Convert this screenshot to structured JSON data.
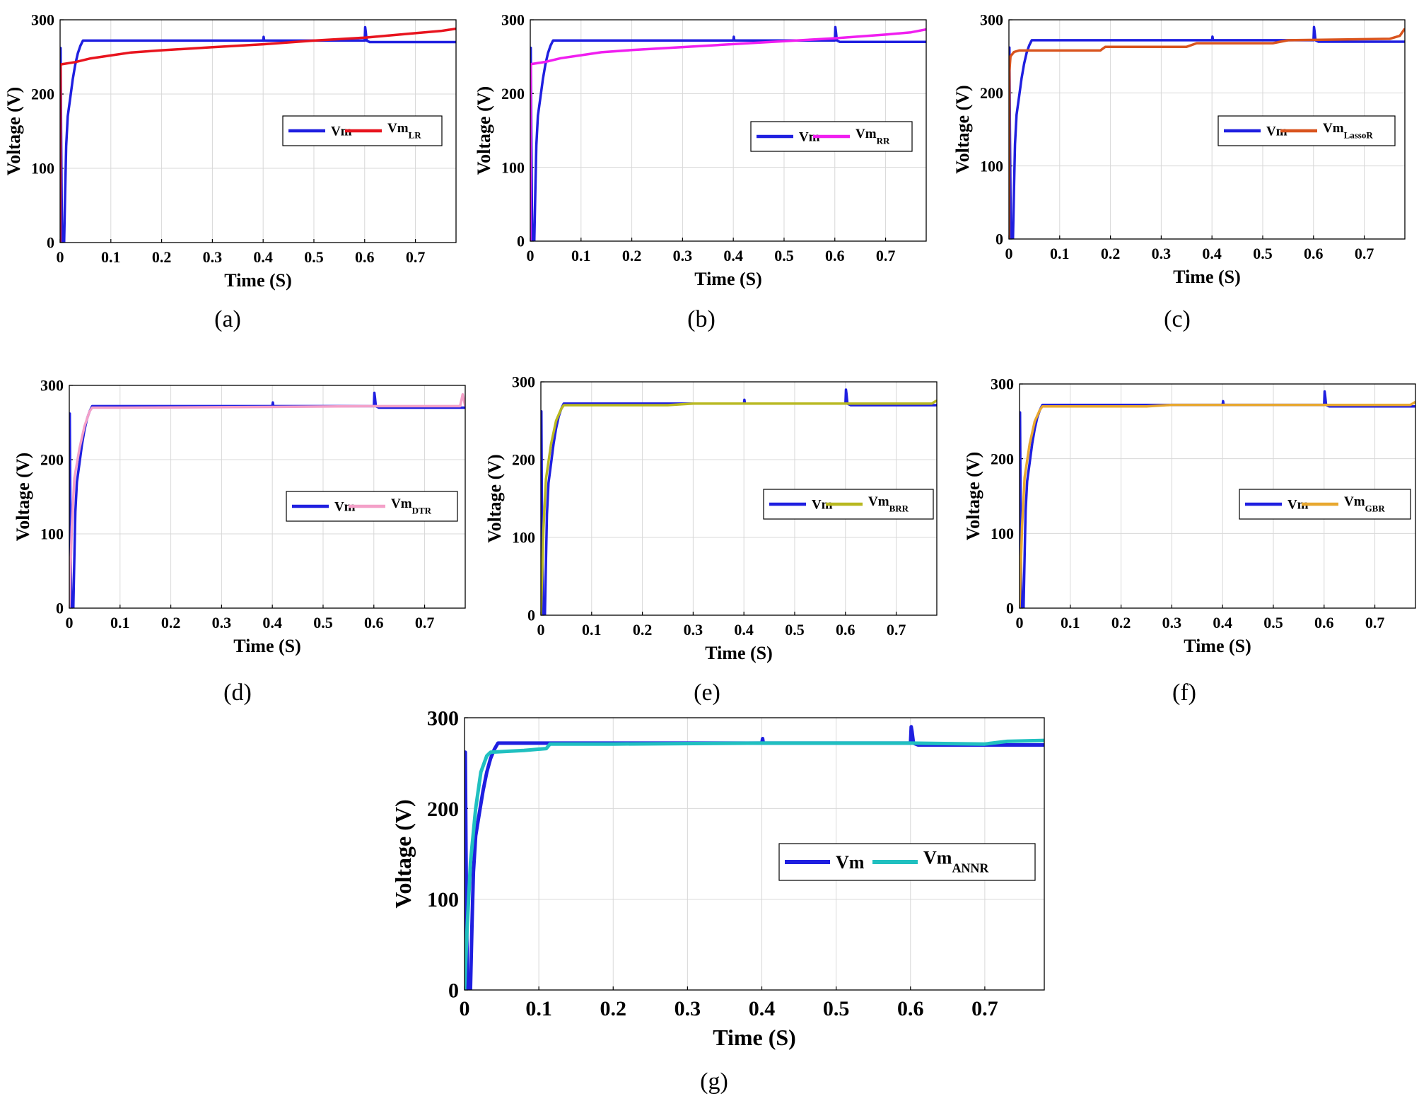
{
  "figure": {
    "panels": [
      {
        "id": "a",
        "caption": "(a)",
        "legend": [
          {
            "label": "Vm",
            "sub": "",
            "color": "#1f1fe0"
          },
          {
            "label": "Vm",
            "sub": "LR",
            "color": "#e8141e"
          }
        ]
      },
      {
        "id": "b",
        "caption": "(b)",
        "legend": [
          {
            "label": "Vm",
            "sub": "",
            "color": "#1f1fe0"
          },
          {
            "label": "Vm",
            "sub": "RR",
            "color": "#f01ef0"
          }
        ]
      },
      {
        "id": "c",
        "caption": "(c)",
        "legend": [
          {
            "label": "Vm",
            "sub": "",
            "color": "#1f1fe0"
          },
          {
            "label": "Vm",
            "sub": "LassoR",
            "color": "#d9541e"
          }
        ]
      },
      {
        "id": "d",
        "caption": "(d)",
        "legend": [
          {
            "label": "Vm",
            "sub": "",
            "color": "#1f1fe0"
          },
          {
            "label": "Vm",
            "sub": "DTR",
            "color": "#f4a0c8"
          }
        ]
      },
      {
        "id": "e",
        "caption": "(e)",
        "legend": [
          {
            "label": "Vm",
            "sub": "",
            "color": "#1f1fe0"
          },
          {
            "label": "Vm",
            "sub": "BRR",
            "color": "#b8b820"
          }
        ]
      },
      {
        "id": "f",
        "caption": "(f)",
        "legend": [
          {
            "label": "Vm",
            "sub": "",
            "color": "#1f1fe0"
          },
          {
            "label": "Vm",
            "sub": "GBR",
            "color": "#e8a830"
          }
        ]
      },
      {
        "id": "g",
        "caption": "(g)",
        "legend": [
          {
            "label": "Vm",
            "sub": "",
            "color": "#1f1fe0"
          },
          {
            "label": "Vm",
            "sub": "ANNR",
            "color": "#20c0c0"
          }
        ]
      }
    ]
  },
  "chart_data": [
    {
      "type": "line",
      "panel": "a",
      "title": "",
      "xlabel": "Time (S)",
      "ylabel": "Voltage (V)",
      "xlim": [
        0,
        0.78
      ],
      "ylim": [
        0,
        300
      ],
      "grid": true,
      "xticks": [
        "0",
        "0.1",
        "0.2",
        "0.3",
        "0.4",
        "0.5",
        "0.6",
        "0.7"
      ],
      "yticks": [
        "0",
        "100",
        "200",
        "300"
      ],
      "legend_position": "center-right",
      "series": [
        {
          "name": "Vm",
          "x": [
            0,
            0.001,
            0.002,
            0.003,
            0.004,
            0.005,
            0.008,
            0.01,
            0.012,
            0.015,
            0.02,
            0.025,
            0.03,
            0.035,
            0.04,
            0.045,
            0.05,
            0.4,
            0.401,
            0.402,
            0.403,
            0.6,
            0.601,
            0.602,
            0.604,
            0.61,
            0.78
          ],
          "y": [
            0,
            262,
            150,
            60,
            5,
            0,
            0,
            70,
            130,
            170,
            195,
            220,
            240,
            255,
            265,
            272,
            272,
            272,
            277,
            272,
            272,
            272,
            290,
            285,
            272,
            270,
            270
          ]
        },
        {
          "name": "Vm_LR",
          "x": [
            0,
            0.001,
            0.002,
            0.03,
            0.06,
            0.1,
            0.14,
            0.2,
            0.3,
            0.4,
            0.5,
            0.6,
            0.7,
            0.75,
            0.78
          ],
          "y": [
            0,
            238,
            240,
            243,
            248,
            252,
            256,
            259,
            263,
            267,
            272,
            276,
            282,
            285,
            288
          ]
        }
      ]
    },
    {
      "type": "line",
      "panel": "b",
      "title": "",
      "xlabel": "Time (S)",
      "ylabel": "Voltage (V)",
      "xlim": [
        0,
        0.78
      ],
      "ylim": [
        0,
        300
      ],
      "grid": true,
      "xticks": [
        "0",
        "0.1",
        "0.2",
        "0.3",
        "0.4",
        "0.5",
        "0.6",
        "0.7"
      ],
      "yticks": [
        "0",
        "100",
        "200",
        "300"
      ],
      "legend_position": "center-right",
      "series": [
        {
          "name": "Vm",
          "x": [
            0,
            0.001,
            0.002,
            0.003,
            0.004,
            0.005,
            0.008,
            0.01,
            0.012,
            0.015,
            0.02,
            0.025,
            0.03,
            0.035,
            0.04,
            0.045,
            0.05,
            0.4,
            0.401,
            0.402,
            0.403,
            0.6,
            0.601,
            0.602,
            0.604,
            0.61,
            0.78
          ],
          "y": [
            0,
            262,
            150,
            60,
            5,
            0,
            0,
            70,
            130,
            170,
            195,
            220,
            240,
            255,
            265,
            272,
            272,
            272,
            277,
            272,
            272,
            272,
            290,
            285,
            272,
            270,
            270
          ]
        },
        {
          "name": "Vm_RR",
          "x": [
            0,
            0.001,
            0.002,
            0.03,
            0.06,
            0.1,
            0.14,
            0.2,
            0.3,
            0.4,
            0.5,
            0.6,
            0.7,
            0.75,
            0.78
          ],
          "y": [
            0,
            238,
            240,
            243,
            248,
            252,
            256,
            259,
            263,
            267,
            271,
            275,
            280,
            283,
            287
          ]
        }
      ]
    },
    {
      "type": "line",
      "panel": "c",
      "title": "",
      "xlabel": "Time (S)",
      "ylabel": "Voltage (V)",
      "xlim": [
        0,
        0.78
      ],
      "ylim": [
        0,
        300
      ],
      "grid": true,
      "xticks": [
        "0",
        "0.1",
        "0.2",
        "0.3",
        "0.4",
        "0.5",
        "0.6",
        "0.7"
      ],
      "yticks": [
        "0",
        "100",
        "200",
        "300"
      ],
      "legend_position": "center-right",
      "series": [
        {
          "name": "Vm",
          "x": [
            0,
            0.001,
            0.002,
            0.003,
            0.004,
            0.005,
            0.008,
            0.01,
            0.012,
            0.015,
            0.02,
            0.025,
            0.03,
            0.035,
            0.04,
            0.045,
            0.05,
            0.4,
            0.401,
            0.402,
            0.403,
            0.6,
            0.601,
            0.602,
            0.604,
            0.61,
            0.78
          ],
          "y": [
            0,
            262,
            150,
            60,
            5,
            0,
            0,
            70,
            130,
            170,
            195,
            220,
            240,
            255,
            265,
            272,
            272,
            272,
            277,
            272,
            272,
            272,
            290,
            285,
            272,
            270,
            270
          ]
        },
        {
          "name": "Vm_LassoR",
          "x": [
            0,
            0.001,
            0.003,
            0.01,
            0.02,
            0.18,
            0.19,
            0.35,
            0.37,
            0.52,
            0.55,
            0.75,
            0.77,
            0.78
          ],
          "y": [
            0,
            230,
            250,
            256,
            258,
            258,
            263,
            263,
            268,
            268,
            272,
            274,
            278,
            288
          ]
        }
      ]
    },
    {
      "type": "line",
      "panel": "d",
      "title": "",
      "xlabel": "Time (S)",
      "ylabel": "Voltage (V)",
      "xlim": [
        0,
        0.78
      ],
      "ylim": [
        0,
        300
      ],
      "grid": true,
      "xticks": [
        "0",
        "0.1",
        "0.2",
        "0.3",
        "0.4",
        "0.5",
        "0.6",
        "0.7"
      ],
      "yticks": [
        "0",
        "100",
        "200",
        "300"
      ],
      "legend_position": "center-right",
      "series": [
        {
          "name": "Vm",
          "x": [
            0,
            0.001,
            0.002,
            0.003,
            0.004,
            0.005,
            0.008,
            0.01,
            0.012,
            0.015,
            0.02,
            0.025,
            0.03,
            0.035,
            0.04,
            0.045,
            0.05,
            0.4,
            0.401,
            0.402,
            0.403,
            0.6,
            0.601,
            0.602,
            0.604,
            0.61,
            0.78
          ],
          "y": [
            0,
            262,
            150,
            60,
            5,
            0,
            0,
            70,
            130,
            170,
            195,
            220,
            240,
            255,
            265,
            272,
            272,
            272,
            277,
            272,
            272,
            272,
            290,
            285,
            272,
            270,
            270
          ]
        },
        {
          "name": "Vm_DTR",
          "x": [
            0,
            0.005,
            0.01,
            0.02,
            0.03,
            0.04,
            0.045,
            0.1,
            0.4,
            0.6,
            0.77,
            0.775,
            0.78
          ],
          "y": [
            0,
            110,
            175,
            215,
            245,
            265,
            270,
            270,
            271,
            272,
            272,
            288,
            272
          ]
        }
      ]
    },
    {
      "type": "line",
      "panel": "e",
      "title": "",
      "xlabel": "Time (S)",
      "ylabel": "Voltage (V)",
      "xlim": [
        0,
        0.78
      ],
      "ylim": [
        0,
        300
      ],
      "grid": true,
      "xticks": [
        "0",
        "0.1",
        "0.2",
        "0.3",
        "0.4",
        "0.5",
        "0.6",
        "0.7"
      ],
      "yticks": [
        "0",
        "100",
        "200",
        "300"
      ],
      "legend_position": "center-right",
      "series": [
        {
          "name": "Vm",
          "x": [
            0,
            0.001,
            0.002,
            0.003,
            0.004,
            0.005,
            0.008,
            0.01,
            0.012,
            0.015,
            0.02,
            0.025,
            0.03,
            0.035,
            0.04,
            0.045,
            0.05,
            0.4,
            0.401,
            0.402,
            0.403,
            0.6,
            0.601,
            0.602,
            0.604,
            0.61,
            0.78
          ],
          "y": [
            0,
            262,
            150,
            60,
            5,
            0,
            0,
            70,
            130,
            170,
            195,
            220,
            240,
            255,
            265,
            272,
            272,
            272,
            277,
            272,
            272,
            272,
            290,
            285,
            272,
            270,
            270
          ]
        },
        {
          "name": "Vm_BRR",
          "x": [
            0,
            0.005,
            0.01,
            0.02,
            0.03,
            0.04,
            0.045,
            0.1,
            0.25,
            0.3,
            0.6,
            0.77,
            0.78
          ],
          "y": [
            0,
            110,
            175,
            220,
            250,
            265,
            270,
            270,
            270,
            272,
            272,
            272,
            276
          ]
        }
      ]
    },
    {
      "type": "line",
      "panel": "f",
      "title": "",
      "xlabel": "Time (S)",
      "ylabel": "Voltage (V)",
      "xlim": [
        0,
        0.78
      ],
      "ylim": [
        0,
        300
      ],
      "grid": true,
      "xticks": [
        "0",
        "0.1",
        "0.2",
        "0.3",
        "0.4",
        "0.5",
        "0.6",
        "0.7"
      ],
      "yticks": [
        "0",
        "100",
        "200",
        "300"
      ],
      "legend_position": "center-right",
      "series": [
        {
          "name": "Vm",
          "x": [
            0,
            0.001,
            0.002,
            0.003,
            0.004,
            0.005,
            0.008,
            0.01,
            0.012,
            0.015,
            0.02,
            0.025,
            0.03,
            0.035,
            0.04,
            0.045,
            0.05,
            0.4,
            0.401,
            0.402,
            0.403,
            0.6,
            0.601,
            0.602,
            0.604,
            0.61,
            0.78
          ],
          "y": [
            0,
            262,
            150,
            60,
            5,
            0,
            0,
            70,
            130,
            170,
            195,
            220,
            240,
            255,
            265,
            272,
            272,
            272,
            277,
            272,
            272,
            272,
            290,
            285,
            272,
            270,
            270
          ]
        },
        {
          "name": "Vm_GBR",
          "x": [
            0,
            0.005,
            0.01,
            0.02,
            0.03,
            0.04,
            0.045,
            0.1,
            0.25,
            0.3,
            0.6,
            0.77,
            0.78
          ],
          "y": [
            0,
            110,
            175,
            220,
            250,
            265,
            270,
            270,
            270,
            272,
            272,
            272,
            276
          ]
        }
      ]
    },
    {
      "type": "line",
      "panel": "g",
      "title": "",
      "xlabel": "Time (S)",
      "ylabel": "Voltage (V)",
      "xlim": [
        0,
        0.78
      ],
      "ylim": [
        0,
        300
      ],
      "grid": true,
      "xticks": [
        "0",
        "0.1",
        "0.2",
        "0.3",
        "0.4",
        "0.5",
        "0.6",
        "0.7"
      ],
      "yticks": [
        "0",
        "100",
        "200",
        "300"
      ],
      "legend_position": "center-right",
      "series": [
        {
          "name": "Vm",
          "x": [
            0,
            0.001,
            0.002,
            0.003,
            0.004,
            0.005,
            0.008,
            0.01,
            0.012,
            0.015,
            0.02,
            0.025,
            0.03,
            0.035,
            0.04,
            0.045,
            0.05,
            0.4,
            0.401,
            0.402,
            0.403,
            0.6,
            0.601,
            0.602,
            0.604,
            0.61,
            0.78
          ],
          "y": [
            0,
            262,
            150,
            60,
            5,
            0,
            0,
            70,
            130,
            170,
            195,
            220,
            240,
            255,
            265,
            272,
            272,
            272,
            277,
            272,
            272,
            272,
            290,
            285,
            272,
            270,
            270
          ]
        },
        {
          "name": "Vm_ANNR",
          "x": [
            0,
            0.003,
            0.008,
            0.015,
            0.022,
            0.03,
            0.035,
            0.08,
            0.11,
            0.115,
            0.2,
            0.4,
            0.6,
            0.7,
            0.73,
            0.78
          ],
          "y": [
            0,
            60,
            140,
            200,
            240,
            258,
            262,
            264,
            266,
            271,
            271,
            272,
            272,
            271,
            274,
            275
          ]
        }
      ]
    }
  ]
}
